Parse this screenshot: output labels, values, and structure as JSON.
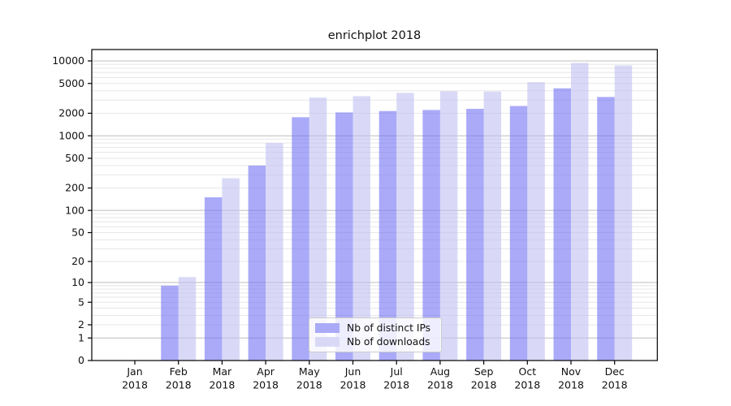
{
  "title": "enrichplot 2018",
  "legend": {
    "items": [
      {
        "label": "Nb of distinct IPs",
        "color": "#aaaaf8"
      },
      {
        "label": "Nb of downloads",
        "color": "#d9d9f7"
      }
    ]
  },
  "chart_data": {
    "type": "bar",
    "title": "enrichplot 2018",
    "categories": [
      "Jan 2018",
      "Feb 2018",
      "Mar 2018",
      "Apr 2018",
      "May 2018",
      "Jun 2018",
      "Jul 2018",
      "Aug 2018",
      "Sep 2018",
      "Oct 2018",
      "Nov 2018",
      "Dec 2018"
    ],
    "series": [
      {
        "name": "Nb of distinct IPs",
        "color_fill": "rgba(113,113,245,0.60)",
        "color": "#aaaaf8",
        "values": [
          0,
          9,
          150,
          400,
          1770,
          2050,
          2140,
          2210,
          2290,
          2500,
          4300,
          3300
        ]
      },
      {
        "name": "Nb of downloads",
        "color_fill": "rgba(192,192,242,0.60)",
        "color": "#d9d9f7",
        "values": [
          0,
          12,
          270,
          800,
          3240,
          3380,
          3740,
          3930,
          3900,
          5200,
          9400,
          8700
        ]
      }
    ],
    "xlabel": "",
    "ylabel": "",
    "yscale": "log1p",
    "yticks": [
      0,
      1,
      2,
      5,
      10,
      20,
      50,
      100,
      200,
      500,
      1000,
      2000,
      5000,
      10000
    ],
    "ylim": [
      0,
      14000
    ],
    "grid": true,
    "grid_major_color": "#bdbdbd",
    "grid_minor_color": "#e7e7e7",
    "legend_position": "lower center inside"
  }
}
